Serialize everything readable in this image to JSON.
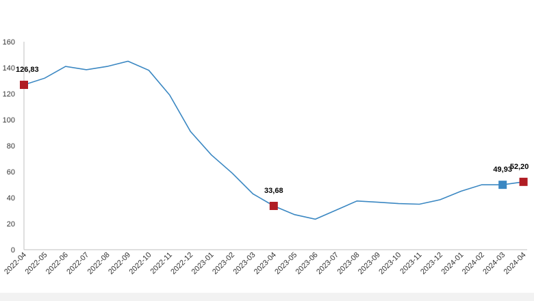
{
  "chart_data": {
    "type": "line",
    "categories": [
      "2022-04",
      "2022-05",
      "2022-06",
      "2022-07",
      "2022-08",
      "2022-09",
      "2022-10",
      "2022-11",
      "2022-12",
      "2023-01",
      "2023-02",
      "2023-03",
      "2023-04",
      "2023-05",
      "2023-06",
      "2023-07",
      "2023-08",
      "2023-09",
      "2023-10",
      "2023-11",
      "2023-12",
      "2024-01",
      "2024-02",
      "2024-03",
      "2024-04"
    ],
    "series": [
      {
        "values": [
          126.83,
          132,
          141,
          138.5,
          141,
          145,
          138,
          119,
          91,
          73,
          59,
          43,
          33.68,
          27,
          23.5,
          30.5,
          37.5,
          36.5,
          35.5,
          35,
          38.5,
          45,
          50,
          49.93,
          52.2
        ]
      }
    ],
    "ylim": [
      0,
      160
    ],
    "yticks": [
      "0",
      "20",
      "40",
      "60",
      "80",
      "100",
      "120",
      "140",
      "160"
    ],
    "grid": false,
    "line_color": "#3a87c2",
    "annotations": [
      {
        "index": 0,
        "label": "126,83",
        "color": "#b01c23"
      },
      {
        "index": 12,
        "label": "33,68",
        "color": "#b01c23"
      },
      {
        "index": 23,
        "label": "49,93",
        "color": "#3a87c2"
      },
      {
        "index": 24,
        "label": "52,20",
        "color": "#b01c23"
      }
    ]
  }
}
